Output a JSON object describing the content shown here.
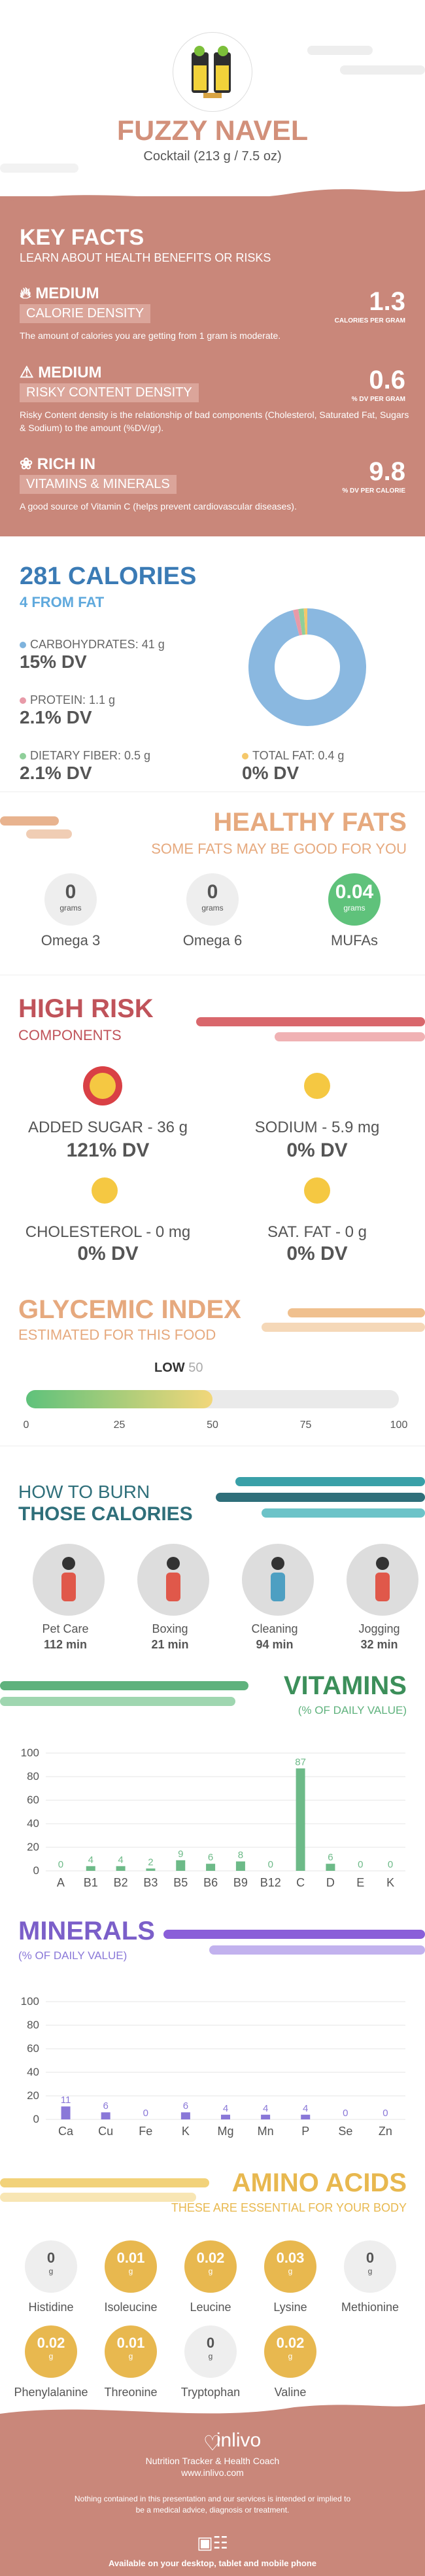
{
  "header": {
    "title": "FUZZY NAVEL",
    "subtitle": "Cocktail (213 g / 7.5 oz)"
  },
  "key_facts": {
    "title": "KEY FACTS",
    "subtitle": "LEARN ABOUT HEALTH BENEFITS OR RISKS",
    "items": [
      {
        "level": "MEDIUM",
        "tag": "CALORIE DENSITY",
        "value": "1.3",
        "unit": "CALORIES PER GRAM",
        "desc": "The amount of calories you are getting from 1 gram is moderate.",
        "icon": "flame-icon"
      },
      {
        "level": "MEDIUM",
        "tag": "RISKY CONTENT DENSITY",
        "value": "0.6",
        "unit": "% DV PER GRAM",
        "desc": "Risky Content density is the relationship of bad components (Cholesterol, Saturated Fat, Sugars & Sodium) to the amount (%DV/gr).",
        "icon": "warning-icon"
      },
      {
        "level": "RICH  IN",
        "tag": "VITAMINS & MINERALS",
        "value": "9.8",
        "unit": "% DV PER CALORIE",
        "desc": "A good source of Vitamin C (helps prevent cardiovascular diseases).",
        "icon": "leaf-icon"
      }
    ]
  },
  "calories": {
    "title": "281 CALORIES",
    "from_fat": "4 FROM FAT",
    "macros": [
      {
        "label": "CARBOHYDRATES: 41 g",
        "dv": "15% DV",
        "color": "#7fb3dd"
      },
      {
        "label": "PROTEIN: 1.1 g",
        "dv": "2.1% DV",
        "color": "#e89aa8"
      },
      {
        "label": "DIETARY FIBER: 0.5 g",
        "dv": "2.1% DV",
        "color": "#8fcf9a"
      },
      {
        "label": "TOTAL FAT: 0.4 g",
        "dv": "0% DV",
        "color": "#f5c86a"
      }
    ],
    "donut": [
      {
        "share": 0.96,
        "color": "#8ab8e0"
      },
      {
        "share": 0.015,
        "color": "#e89aa8"
      },
      {
        "share": 0.015,
        "color": "#8fcf9a"
      },
      {
        "share": 0.01,
        "color": "#f5c86a"
      }
    ]
  },
  "healthy_fats": {
    "title": "HEALTHY FATS",
    "subtitle": "SOME FATS MAY BE GOOD FOR YOU",
    "items": [
      {
        "value": "0",
        "unit": "grams",
        "label": "Omega 3"
      },
      {
        "value": "0",
        "unit": "grams",
        "label": "Omega 6"
      },
      {
        "value": "0.04",
        "unit": "grams",
        "label": "MUFAs"
      }
    ]
  },
  "high_risk": {
    "title": "HIGH RISK",
    "subtitle": "COMPONENTS",
    "items": [
      {
        "label": "ADDED SUGAR - 36 g",
        "dv": "121% DV"
      },
      {
        "label": "SODIUM - 5.9 mg",
        "dv": "0% DV"
      },
      {
        "label": "CHOLESTEROL - 0 mg",
        "dv": "0% DV"
      },
      {
        "label": "SAT. FAT - 0 g",
        "dv": "0% DV"
      }
    ]
  },
  "glycemic": {
    "title": "GLYCEMIC INDEX",
    "subtitle": "ESTIMATED FOR THIS FOOD",
    "level": "LOW",
    "value": "50",
    "ticks": [
      "0",
      "25",
      "50",
      "75",
      "100"
    ]
  },
  "burn": {
    "title1": "HOW TO BURN",
    "title2": "THOSE CALORIES",
    "items": [
      {
        "label": "Pet Care",
        "minutes": "112 min",
        "icon": "dog-walking-icon"
      },
      {
        "label": "Boxing",
        "minutes": "21 min",
        "icon": "boxing-icon"
      },
      {
        "label": "Cleaning",
        "minutes": "94 min",
        "icon": "cleaning-icon"
      },
      {
        "label": "Jogging",
        "minutes": "32 min",
        "icon": "jogging-icon"
      }
    ]
  },
  "vitamins": {
    "title": "VITAMINS",
    "subtitle": "(% OF DAILY VALUE)",
    "chart_data": {
      "type": "bar",
      "categories": [
        "A",
        "B1",
        "B2",
        "B3",
        "B5",
        "B6",
        "B9",
        "B12",
        "C",
        "D",
        "E",
        "K"
      ],
      "values": [
        0,
        4,
        4,
        2,
        9,
        6,
        8,
        0,
        87,
        6,
        0,
        0
      ],
      "ylim": [
        0,
        100
      ],
      "yticks": [
        "0",
        "20",
        "40",
        "60",
        "80",
        "100"
      ],
      "color": "#6dba88"
    }
  },
  "minerals": {
    "title": "MINERALS",
    "subtitle": "(% OF DAILY VALUE)",
    "chart_data": {
      "type": "bar",
      "categories": [
        "Ca",
        "Cu",
        "Fe",
        "K",
        "Mg",
        "Mn",
        "P",
        "Se",
        "Zn"
      ],
      "values": [
        11,
        6,
        0,
        6,
        4,
        4,
        4,
        0,
        0
      ],
      "ylim": [
        0,
        100
      ],
      "yticks": [
        "0",
        "20",
        "40",
        "60",
        "80",
        "100"
      ],
      "color": "#8a78d8"
    }
  },
  "amino": {
    "title": "AMINO ACIDS",
    "subtitle": "THESE ARE ESSENTIAL FOR YOUR BODY",
    "items": [
      {
        "value": "0",
        "unit": "g",
        "label": "Histidine",
        "active": false
      },
      {
        "value": "0.01",
        "unit": "g",
        "label": "Isoleucine",
        "active": true
      },
      {
        "value": "0.02",
        "unit": "g",
        "label": "Leucine",
        "active": true
      },
      {
        "value": "0.03",
        "unit": "g",
        "label": "Lysine",
        "active": true
      },
      {
        "value": "0",
        "unit": "g",
        "label": "Methionine",
        "active": false
      },
      {
        "value": "0.02",
        "unit": "g",
        "label": "Phenylalanine",
        "active": true
      },
      {
        "value": "0.01",
        "unit": "g",
        "label": "Threonine",
        "active": true
      },
      {
        "value": "0",
        "unit": "g",
        "label": "Tryptophan",
        "active": false
      },
      {
        "value": "0.02",
        "unit": "g",
        "label": "Valine",
        "active": true
      }
    ]
  },
  "footer": {
    "brand": "inlivo",
    "tagline": "Nutrition Tracker & Health Coach",
    "url": "www.inlivo.com",
    "disclaimer": "Nothing contained in this presentation and our services is intended or implied to be a medical advice, diagnosis or treatment.",
    "available": "Available on your desktop, tablet and mobile phone"
  }
}
